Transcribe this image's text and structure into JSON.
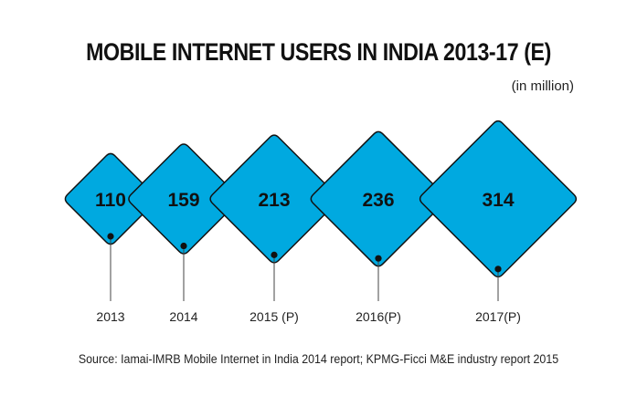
{
  "title": "MOBILE INTERNET USERS IN INDIA 2013-17 (E)",
  "subtitle": "(in million)",
  "source": "Source: Iamai-IMRB Mobile Internet in India 2014 report; KPMG-Ficci M&E industry report 2015",
  "colors": {
    "fill": "#00A9E0",
    "stroke": "#111111",
    "text": "#111111"
  },
  "chart_data": {
    "type": "bar",
    "title": "MOBILE INTERNET USERS IN INDIA 2013-17 (E)",
    "categories": [
      "2013",
      "2014",
      "2015 (P)",
      "2016(P)",
      "2017(P)"
    ],
    "values": [
      110,
      159,
      213,
      236,
      314
    ],
    "unit": "(in million)",
    "value_labels": [
      "110",
      "159",
      "213",
      "236",
      "314"
    ]
  }
}
